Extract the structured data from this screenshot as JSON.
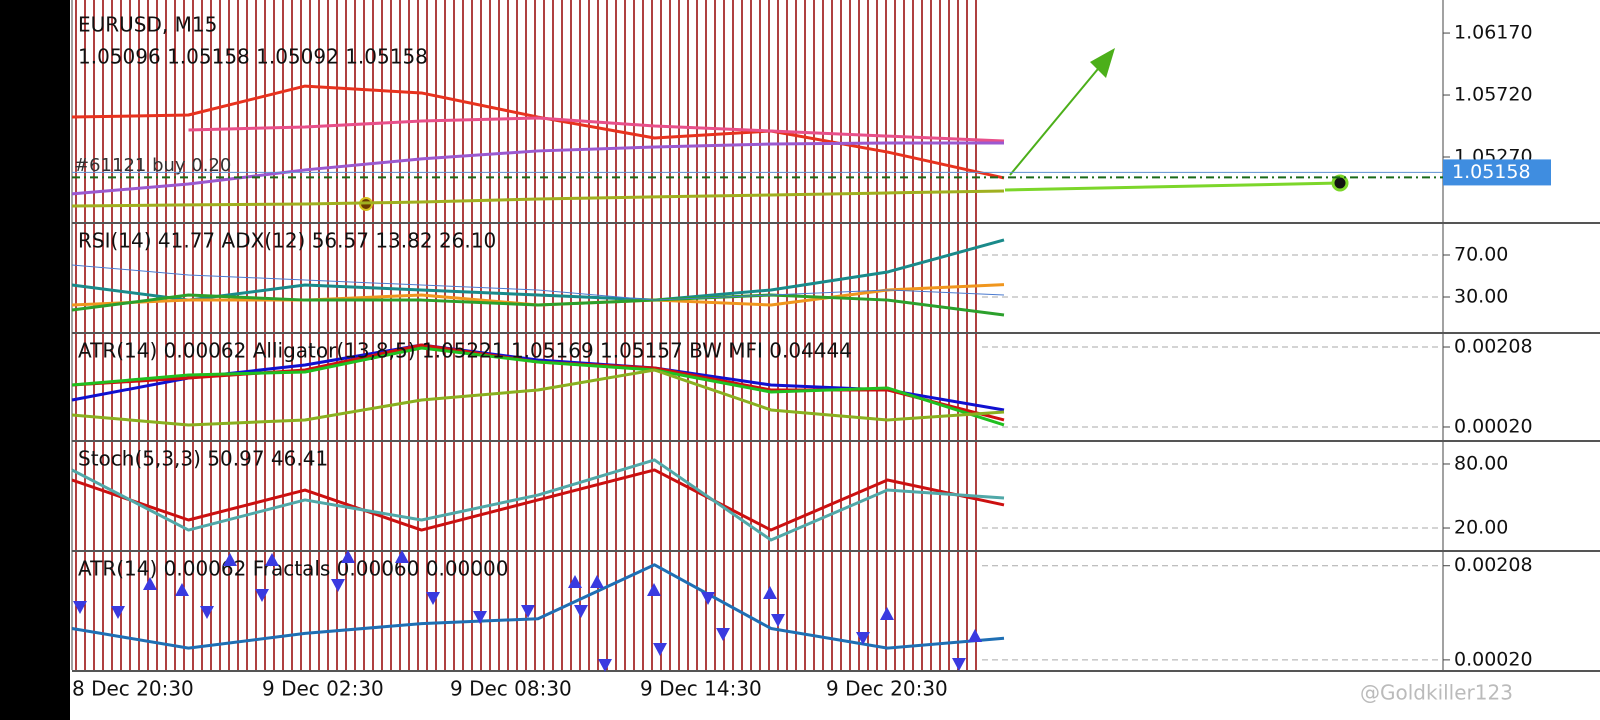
{
  "chart_data": [
    {
      "type": "line",
      "title": "EURUSD, M15",
      "subtitle": "1.05096 1.05158 1.05092 1.05158",
      "annotation": "#61121 buy 0.20",
      "ylim": [
        1.04798,
        1.0641
      ],
      "yticks": [
        {
          "value": 1.0617,
          "label": "1.06170"
        },
        {
          "value": 1.0572,
          "label": "1.05720"
        },
        {
          "value": 1.0527,
          "label": "1.05270"
        }
      ],
      "last_price": 1.05158,
      "series": [
        {
          "color": "#e8321e",
          "values": [
            1.0556,
            1.05575,
            1.05785,
            1.05735,
            1.0556,
            1.05408,
            1.05459,
            1.05306,
            1.05118
          ]
        },
        {
          "color": "#e8508a",
          "values": [
            null,
            1.05466,
            1.05488,
            1.05531,
            1.05553,
            1.05495,
            1.05459,
            1.05422,
            1.05386
          ]
        },
        {
          "color": "#9b59d0",
          "values": [
            1.05002,
            1.05074,
            1.05176,
            1.05256,
            1.05314,
            1.05343,
            1.05364,
            1.05372,
            1.05372
          ]
        },
        {
          "color": "#a0b020",
          "values": [
            1.04914,
            1.04922,
            1.04929,
            1.04943,
            1.04965,
            1.0498,
            1.04994,
            1.05009,
            1.05023
          ]
        }
      ]
    },
    {
      "type": "line",
      "title": "RSI(14) 41.77 ADX(12) 56.57 13.82 26.10",
      "ylim": [
        -3.3,
        99.5
      ],
      "yticks": [
        {
          "value": 70,
          "label": "70.00"
        },
        {
          "value": 30,
          "label": "30.00"
        }
      ],
      "series": [
        {
          "color": "#1a8a8a",
          "values": [
            41.4,
            27.1,
            41.4,
            36.7,
            31.9,
            27.1,
            36.7,
            53.8,
            84.3
          ]
        },
        {
          "color": "#f0961e",
          "values": [
            22.4,
            27.1,
            27.1,
            31.9,
            22.4,
            27.1,
            22.4,
            36.7,
            41.77
          ]
        },
        {
          "color": "#2ca02c",
          "values": [
            17.6,
            31.9,
            27.1,
            27.1,
            22.4,
            27.1,
            31.9,
            27.1,
            12.9
          ]
        },
        {
          "color": "#4a7ad0",
          "values": [
            60.5,
            51,
            46.2,
            41.4,
            36.7,
            27.1,
            31.9,
            36.7,
            31.9
          ],
          "width": 1
        }
      ]
    },
    {
      "type": "line",
      "title": "ATR(14) 0.00062 Alligator(13,8,5) 1.05221 1.05169 1.05157 BW MFI 0.04444",
      "ylim": [
        -0.000106,
        0.002386
      ],
      "yticks": [
        {
          "value": 0.00208,
          "label": "0.00208"
        },
        {
          "value": 0.0002,
          "label": "0.00020"
        }
      ],
      "series": [
        {
          "color": "#1010d0",
          "values": [
            0.000835,
            0.001352,
            0.001657,
            0.002127,
            0.001775,
            0.001587,
            0.001187,
            0.00107,
            0.0006
          ]
        },
        {
          "color": "#d01010",
          "values": [
            0.001187,
            0.001352,
            0.00154,
            0.002127,
            0.001728,
            0.001587,
            0.00107,
            0.00107,
            0.000365
          ]
        },
        {
          "color": "#20c020",
          "values": [
            0.001187,
            0.001422,
            0.001493,
            0.002057,
            0.001728,
            0.00154,
            0.001022,
            0.001117,
            0.000247
          ]
        },
        {
          "color": "#8ab020",
          "values": [
            0.000482,
            0.000247,
            0.000365,
            0.000835,
            0.00107,
            0.00154,
            0.0006,
            0.000365,
            0.000553
          ]
        }
      ]
    },
    {
      "type": "line",
      "title": "Stoch(5,3,3) 50.97 46.41",
      "ylim": [
        -0.6,
        100.6
      ],
      "yticks": [
        {
          "value": 80,
          "label": "80.00"
        },
        {
          "value": 20,
          "label": "20.00"
        }
      ],
      "series": [
        {
          "color": "#cc1010",
          "values": [
            65,
            27.5,
            55.6,
            18.1,
            46.3,
            74.4,
            18.1,
            65,
            41.6
          ]
        },
        {
          "color": "#50a8a8",
          "values": [
            74.4,
            18.1,
            46.3,
            27.5,
            50.9,
            83.8,
            8.75,
            55.6,
            48.1
          ]
        }
      ]
    },
    {
      "type": "line",
      "title": "ATR(14) 0.00062 Fractals 0.00060 0.00000",
      "ylim": [
        -2e-06,
        0.002354
      ],
      "yticks": [
        {
          "value": 0.00208,
          "label": "0.00208"
        },
        {
          "value": 0.0002,
          "label": "0.00020"
        }
      ],
      "series": [
        {
          "color": "#1f6fb4",
          "values": [
            0.000827,
            0.000435,
            0.000729,
            0.000924,
            0.001022,
            0.002099,
            0.000827,
            0.000435,
            0.000631
          ]
        }
      ]
    }
  ],
  "time_labels": [
    "8 Dec 20:30",
    "9 Dec 02:30",
    "9 Dec 08:30",
    "9 Dec 14:30",
    "9 Dec 20:30"
  ],
  "watermark": "@Goldkiller123"
}
